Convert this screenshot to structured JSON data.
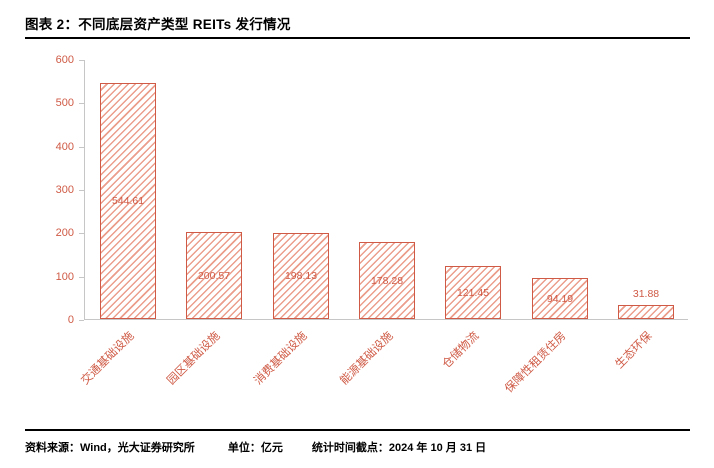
{
  "header": {
    "title": "图表 2：不同底层资产类型 REITs 发行情况"
  },
  "colors": {
    "chart_red": "#cf5a45",
    "hatch_fill": "#ec9e8d",
    "axis_gray": "#c6c6c6",
    "text_black": "#000000"
  },
  "chart_data": {
    "type": "bar",
    "title": "不同底层资产类型 REITs 发行情况",
    "categories": [
      "交通基础设施",
      "园区基础设施",
      "消费基础设施",
      "能源基础设施",
      "仓储物流",
      "保障性租赁住房",
      "生态环保"
    ],
    "values": [
      544.61,
      200.57,
      198.13,
      178.28,
      121.45,
      94.19,
      31.88
    ],
    "data_labels": [
      "544.61",
      "200.57",
      "198.13",
      "178.28",
      "121.45",
      "94.19",
      "31.88"
    ],
    "xlabel": "",
    "ylabel": "",
    "ylim": [
      0,
      600
    ],
    "yticks": [
      0,
      100,
      200,
      300,
      400,
      500,
      600
    ],
    "grid": false,
    "legend": "none",
    "bar_style": "white fill with diagonal red hatching and red outline",
    "x_tick_rotation": 45
  },
  "footer": {
    "source": "资料来源：Wind，光大证券研究所",
    "unit": "单位：亿元",
    "cutoff": "统计时间截点：2024 年 10 月 31 日"
  }
}
